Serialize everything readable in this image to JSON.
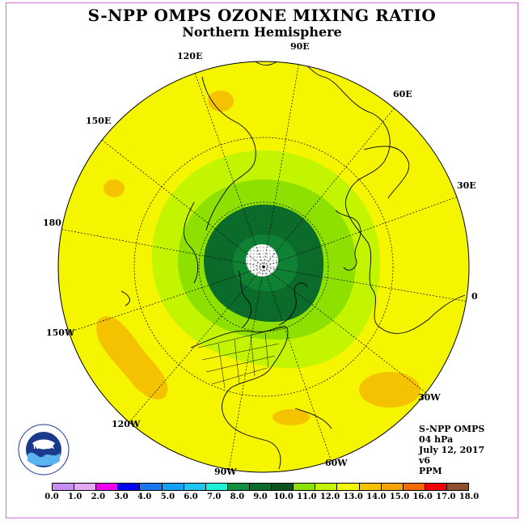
{
  "title": "S-NPP OMPS OZONE MIXING RATIO",
  "subtitle": "Northern Hemisphere",
  "longitude_labels": {
    "e90": "90E",
    "e60": "60E",
    "e30": "30E",
    "zero": "0",
    "w30": "30W",
    "w60": "60W",
    "w90": "90W",
    "w120": "120W",
    "w150": "150W",
    "d180": "180",
    "e150": "150E",
    "e120": "120E"
  },
  "info": {
    "instrument": "S-NPP OMPS",
    "level": "04 hPa",
    "date": "July 12, 2017",
    "version": "v6",
    "units": "PPM"
  },
  "logo_text": "NOAA",
  "colorbar": {
    "ticks": [
      "0.0",
      "1.0",
      "2.0",
      "3.0",
      "4.0",
      "5.0",
      "6.0",
      "7.0",
      "8.0",
      "9.0",
      "10.0",
      "11.0",
      "12.0",
      "13.0",
      "14.0",
      "15.0",
      "16.0",
      "17.0",
      "18.0"
    ],
    "colors": [
      "#c58ef0",
      "#e5a8f5",
      "#f000f0",
      "#0000f0",
      "#1a76f0",
      "#14a0f5",
      "#1cc6f0",
      "#1ff0d8",
      "#128f3c",
      "#0b6b2a",
      "#0a5220",
      "#8ee000",
      "#c4f500",
      "#f5f500",
      "#f5c200",
      "#f5a300",
      "#f56b00",
      "#f50000",
      "#8c5030"
    ]
  }
}
